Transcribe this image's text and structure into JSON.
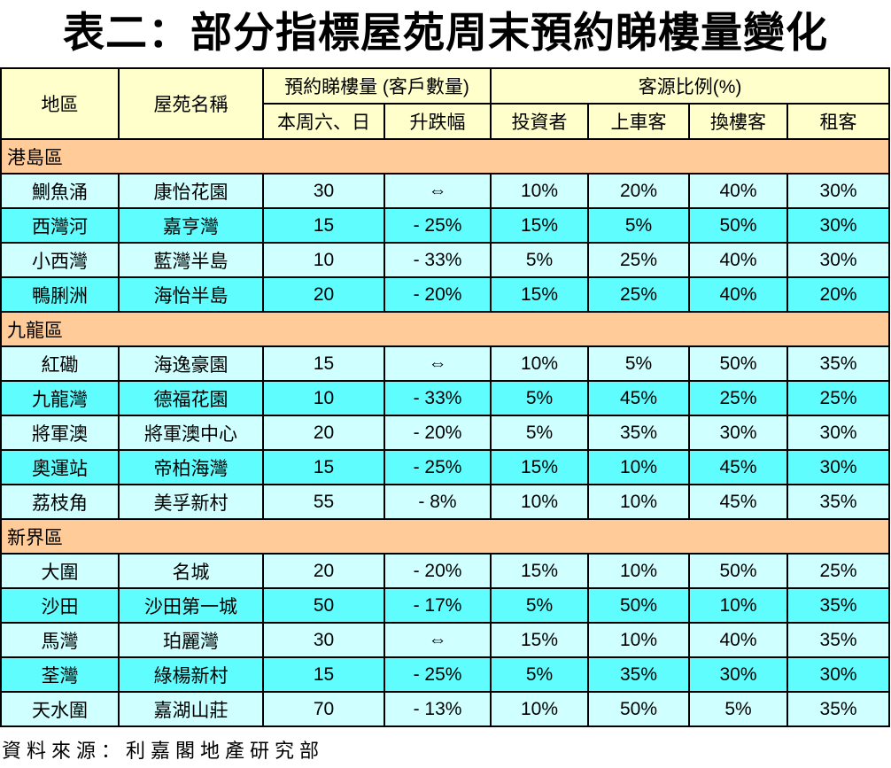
{
  "title": "表二：部分指標屋苑周末預約睇樓量變化",
  "table": {
    "header": {
      "district": "地區",
      "estate_name": "屋苑名稱",
      "bookings_group": "預約睇樓量 (客戶數量)",
      "bookings_sub": [
        "本周六、日",
        "升跌幅"
      ],
      "clients_group": "客源比例(%)",
      "clients_sub": [
        "投資者",
        "上車客",
        "換樓客",
        "租客"
      ]
    },
    "sections": [
      {
        "name": "港島區",
        "rows": [
          [
            "鰂魚涌",
            "康怡花園",
            "30",
            "⇔",
            "10%",
            "20%",
            "40%",
            "30%"
          ],
          [
            "西灣河",
            "嘉亨灣",
            "15",
            "- 25%",
            "15%",
            "5%",
            "50%",
            "30%"
          ],
          [
            "小西灣",
            "藍灣半島",
            "10",
            "- 33%",
            "5%",
            "25%",
            "40%",
            "30%"
          ],
          [
            "鴨脷洲",
            "海怡半島",
            "20",
            "- 20%",
            "15%",
            "25%",
            "40%",
            "20%"
          ]
        ]
      },
      {
        "name": "九龍區",
        "rows": [
          [
            "紅磡",
            "海逸豪園",
            "15",
            "⇔",
            "10%",
            "5%",
            "50%",
            "35%"
          ],
          [
            "九龍灣",
            "德福花園",
            "10",
            "- 33%",
            "5%",
            "45%",
            "25%",
            "25%"
          ],
          [
            "將軍澳",
            "將軍澳中心",
            "20",
            "- 20%",
            "5%",
            "35%",
            "30%",
            "30%"
          ],
          [
            "奧運站",
            "帝柏海灣",
            "15",
            "- 25%",
            "15%",
            "10%",
            "45%",
            "30%"
          ],
          [
            "荔枝角",
            "美孚新村",
            "55",
            "- 8%",
            "10%",
            "10%",
            "45%",
            "35%"
          ]
        ]
      },
      {
        "name": "新界區",
        "rows": [
          [
            "大圍",
            "名城",
            "20",
            "- 20%",
            "15%",
            "10%",
            "50%",
            "25%"
          ],
          [
            "沙田",
            "沙田第一城",
            "50",
            "- 17%",
            "5%",
            "50%",
            "10%",
            "35%"
          ],
          [
            "馬灣",
            "珀麗灣",
            "30",
            "⇔",
            "15%",
            "10%",
            "40%",
            "35%"
          ],
          [
            "荃灣",
            "綠楊新村",
            "15",
            "- 25%",
            "5%",
            "35%",
            "30%",
            "30%"
          ],
          [
            "天水圍",
            "嘉湖山莊",
            "70",
            "- 13%",
            "10%",
            "50%",
            "5%",
            "35%"
          ]
        ]
      }
    ]
  },
  "footer": "資料來源：利嘉閣地產研究部",
  "colors": {
    "header_bg": "#FFFFCC",
    "section_bg": "#FFCC99",
    "row_pale_bg": "#CFFFFF",
    "row_bright_bg": "#5FFDFD",
    "border": "#000000",
    "text": "#000000"
  }
}
